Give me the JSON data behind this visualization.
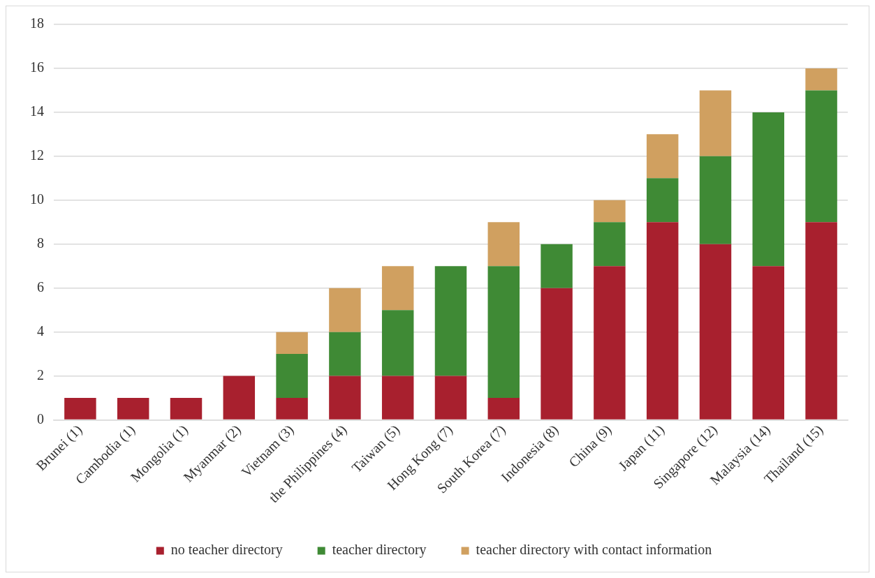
{
  "chart_data": {
    "type": "bar",
    "stacked": true,
    "categories": [
      "Brunei (1)",
      "Cambodia (1)",
      "Mongolia (1)",
      "Myanmar (2)",
      "Vietnam (3)",
      "the Philippines (4)",
      "Taiwan (5)",
      "Hong Kong (7)",
      "South Korea (7)",
      "Indonesia (8)",
      "China (9)",
      "Japan (11)",
      "Singapore (12)",
      "Malaysia (14)",
      "Thailand (15)"
    ],
    "series": [
      {
        "name": "no teacher directory",
        "color": "#a8202e",
        "values": [
          1,
          1,
          1,
          2,
          1,
          2,
          2,
          2,
          1,
          6,
          7,
          9,
          8,
          7,
          9
        ]
      },
      {
        "name": "teacher directory",
        "color": "#3f8a35",
        "values": [
          0,
          0,
          0,
          0,
          2,
          2,
          3,
          5,
          6,
          2,
          2,
          2,
          4,
          7,
          6
        ]
      },
      {
        "name": "teacher directory with contact information",
        "color": "#d0a060",
        "values": [
          0,
          0,
          0,
          0,
          1,
          2,
          2,
          0,
          2,
          0,
          1,
          2,
          3,
          0,
          1
        ]
      }
    ],
    "ylim": [
      0,
      18
    ],
    "yticks": [
      0,
      2,
      4,
      6,
      8,
      10,
      12,
      14,
      16,
      18
    ],
    "grid": "y",
    "legend": "bottom"
  }
}
